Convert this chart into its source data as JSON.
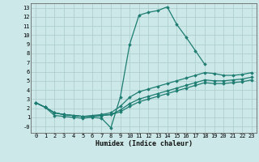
{
  "xlabel": "Humidex (Indice chaleur)",
  "background_color": "#cce8e8",
  "line_color": "#1e7d72",
  "grid_color": "#aacccc",
  "xlim": [
    -0.5,
    23.5
  ],
  "ylim": [
    -0.7,
    13.5
  ],
  "xticks": [
    0,
    1,
    2,
    3,
    4,
    5,
    6,
    7,
    8,
    9,
    10,
    11,
    12,
    13,
    14,
    15,
    16,
    17,
    18,
    19,
    20,
    21,
    22,
    23
  ],
  "yticks": [
    0,
    1,
    2,
    3,
    4,
    5,
    6,
    7,
    8,
    9,
    10,
    11,
    12,
    13
  ],
  "ytick_labels": [
    "-0",
    "1",
    "2",
    "3",
    "4",
    "5",
    "6",
    "7",
    "8",
    "9",
    "10",
    "11",
    "12",
    "13"
  ],
  "lines": [
    {
      "x": [
        0,
        1,
        2,
        3,
        4,
        5,
        6,
        7,
        8,
        9,
        10,
        11,
        12,
        13,
        14,
        15,
        16,
        17,
        18
      ],
      "y": [
        2.6,
        2.1,
        1.2,
        1.1,
        1.0,
        0.9,
        1.0,
        0.9,
        -0.15,
        3.2,
        9.0,
        12.2,
        12.5,
        12.7,
        13.1,
        11.2,
        9.8,
        8.3,
        6.8
      ]
    },
    {
      "x": [
        0,
        1,
        2,
        3,
        4,
        5,
        6,
        7,
        8,
        9,
        10,
        11,
        12,
        13,
        14,
        15,
        16,
        17,
        18,
        19,
        20,
        21,
        22,
        23
      ],
      "y": [
        2.6,
        2.1,
        1.5,
        1.3,
        1.2,
        1.1,
        1.2,
        1.3,
        1.5,
        2.2,
        3.2,
        3.8,
        4.1,
        4.4,
        4.7,
        5.0,
        5.3,
        5.6,
        5.9,
        5.8,
        5.6,
        5.6,
        5.7,
        5.9
      ]
    },
    {
      "x": [
        0,
        1,
        2,
        3,
        4,
        5,
        6,
        7,
        8,
        9,
        10,
        11,
        12,
        13,
        14,
        15,
        16,
        17,
        18,
        19,
        20,
        21,
        22,
        23
      ],
      "y": [
        2.6,
        2.1,
        1.5,
        1.3,
        1.2,
        1.1,
        1.1,
        1.2,
        1.3,
        1.8,
        2.5,
        3.0,
        3.3,
        3.6,
        3.9,
        4.2,
        4.5,
        4.8,
        5.1,
        5.0,
        5.0,
        5.1,
        5.2,
        5.4
      ]
    },
    {
      "x": [
        0,
        1,
        2,
        3,
        4,
        5,
        6,
        7,
        8,
        9,
        10,
        11,
        12,
        13,
        14,
        15,
        16,
        17,
        18,
        19,
        20,
        21,
        22,
        23
      ],
      "y": [
        2.6,
        2.1,
        1.5,
        1.3,
        1.2,
        1.1,
        1.1,
        1.2,
        1.3,
        1.6,
        2.2,
        2.7,
        3.0,
        3.3,
        3.6,
        3.9,
        4.2,
        4.5,
        4.8,
        4.7,
        4.7,
        4.8,
        4.9,
        5.1
      ]
    }
  ]
}
